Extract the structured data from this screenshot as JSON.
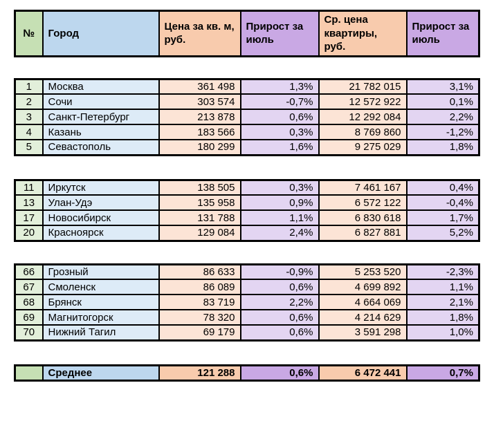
{
  "colors": {
    "green_header": "#C6E0B4",
    "blue_header": "#BDD7EE",
    "orange_header": "#F8CBAD",
    "purple_header": "#C9A8E4",
    "green_light": "#E2EFDA",
    "blue_light": "#DDEBF7",
    "orange_light": "#FCE4D6",
    "purple_light": "#E3D5F2",
    "border": "#000000",
    "background": "#FFFFFF"
  },
  "table": {
    "columns": [
      {
        "key": "rank",
        "label": "№"
      },
      {
        "key": "city",
        "label": "Город"
      },
      {
        "key": "price_per_sqm",
        "label": "Цена за кв. м, руб."
      },
      {
        "key": "growth_july_1",
        "label": "Прирост за июль"
      },
      {
        "key": "avg_apartment_price",
        "label": "Ср. цена квартиры, руб."
      },
      {
        "key": "growth_july_2",
        "label": "Прирост за июль"
      }
    ],
    "groups": [
      {
        "rows": [
          {
            "rank": "1",
            "city": "Москва",
            "price_per_sqm": "361 498",
            "growth_july_1": "1,3%",
            "avg_apartment_price": "21 782 015",
            "growth_july_2": "3,1%"
          },
          {
            "rank": "2",
            "city": "Сочи",
            "price_per_sqm": "303 574",
            "growth_july_1": "-0,7%",
            "avg_apartment_price": "12 572 922",
            "growth_july_2": "0,1%"
          },
          {
            "rank": "3",
            "city": "Санкт-Петербург",
            "price_per_sqm": "213 878",
            "growth_july_1": "0,6%",
            "avg_apartment_price": "12 292 084",
            "growth_july_2": "2,2%"
          },
          {
            "rank": "4",
            "city": "Казань",
            "price_per_sqm": "183 566",
            "growth_july_1": "0,3%",
            "avg_apartment_price": "8 769 860",
            "growth_july_2": "-1,2%"
          },
          {
            "rank": "5",
            "city": "Севастополь",
            "price_per_sqm": "180 299",
            "growth_july_1": "1,6%",
            "avg_apartment_price": "9 275 029",
            "growth_july_2": "1,8%"
          }
        ]
      },
      {
        "rows": [
          {
            "rank": "11",
            "city": "Иркутск",
            "price_per_sqm": "138 505",
            "growth_july_1": "0,3%",
            "avg_apartment_price": "7 461 167",
            "growth_july_2": "0,4%"
          },
          {
            "rank": "13",
            "city": "Улан-Удэ",
            "price_per_sqm": "135 958",
            "growth_july_1": "0,9%",
            "avg_apartment_price": "6 572 122",
            "growth_july_2": "-0,4%"
          },
          {
            "rank": "17",
            "city": "Новосибирск",
            "price_per_sqm": "131 788",
            "growth_july_1": "1,1%",
            "avg_apartment_price": "6 830 618",
            "growth_july_2": "1,7%"
          },
          {
            "rank": "20",
            "city": "Красноярск",
            "price_per_sqm": "129 084",
            "growth_july_1": "2,4%",
            "avg_apartment_price": "6 827 881",
            "growth_july_2": "5,2%"
          }
        ]
      },
      {
        "rows": [
          {
            "rank": "66",
            "city": "Грозный",
            "price_per_sqm": "86 633",
            "growth_july_1": "-0,9%",
            "avg_apartment_price": "5 253 520",
            "growth_july_2": "-2,3%"
          },
          {
            "rank": "67",
            "city": "Смоленск",
            "price_per_sqm": "86 089",
            "growth_july_1": "0,6%",
            "avg_apartment_price": "4 699 892",
            "growth_july_2": "1,1%"
          },
          {
            "rank": "68",
            "city": "Брянск",
            "price_per_sqm": "83 719",
            "growth_july_1": "2,2%",
            "avg_apartment_price": "4 664 069",
            "growth_july_2": "2,1%"
          },
          {
            "rank": "69",
            "city": "Магнитогорск",
            "price_per_sqm": "78 320",
            "growth_july_1": "0,6%",
            "avg_apartment_price": "4 214 629",
            "growth_july_2": "1,8%"
          },
          {
            "rank": "70",
            "city": "Нижний Тагил",
            "price_per_sqm": "69 179",
            "growth_july_1": "0,6%",
            "avg_apartment_price": "3 591 298",
            "growth_july_2": "1,0%"
          }
        ]
      }
    ],
    "summary": {
      "rank": "",
      "city": "Среднее",
      "price_per_sqm": "121 288",
      "growth_july_1": "0,6%",
      "avg_apartment_price": "6 472 441",
      "growth_july_2": "0,7%"
    }
  },
  "chart_data": {
    "type": "table",
    "columns": [
      "№",
      "Город",
      "Цена за кв. м, руб.",
      "Прирост за июль",
      "Ср. цена квартиры, руб.",
      "Прирост за июль"
    ],
    "rows": [
      [
        "1",
        "Москва",
        "361 498",
        "1,3%",
        "21 782 015",
        "3,1%"
      ],
      [
        "2",
        "Сочи",
        "303 574",
        "-0,7%",
        "12 572 922",
        "0,1%"
      ],
      [
        "3",
        "Санкт-Петербург",
        "213 878",
        "0,6%",
        "12 292 084",
        "2,2%"
      ],
      [
        "4",
        "Казань",
        "183 566",
        "0,3%",
        "8 769 860",
        "-1,2%"
      ],
      [
        "5",
        "Севастополь",
        "180 299",
        "1,6%",
        "9 275 029",
        "1,8%"
      ],
      [
        "11",
        "Иркутск",
        "138 505",
        "0,3%",
        "7 461 167",
        "0,4%"
      ],
      [
        "13",
        "Улан-Удэ",
        "135 958",
        "0,9%",
        "6 572 122",
        "-0,4%"
      ],
      [
        "17",
        "Новосибирск",
        "131 788",
        "1,1%",
        "6 830 618",
        "1,7%"
      ],
      [
        "20",
        "Красноярск",
        "129 084",
        "2,4%",
        "6 827 881",
        "5,2%"
      ],
      [
        "66",
        "Грозный",
        "86 633",
        "-0,9%",
        "5 253 520",
        "-2,3%"
      ],
      [
        "67",
        "Смоленск",
        "86 089",
        "0,6%",
        "4 699 892",
        "1,1%"
      ],
      [
        "68",
        "Брянск",
        "83 719",
        "2,2%",
        "4 664 069",
        "2,1%"
      ],
      [
        "69",
        "Магнитогорск",
        "78 320",
        "0,6%",
        "4 214 629",
        "1,8%"
      ],
      [
        "70",
        "Нижний Тагил",
        "69 179",
        "0,6%",
        "3 591 298",
        "1,0%"
      ],
      [
        "",
        "Среднее",
        "121 288",
        "0,6%",
        "6 472 441",
        "0,7%"
      ]
    ]
  }
}
